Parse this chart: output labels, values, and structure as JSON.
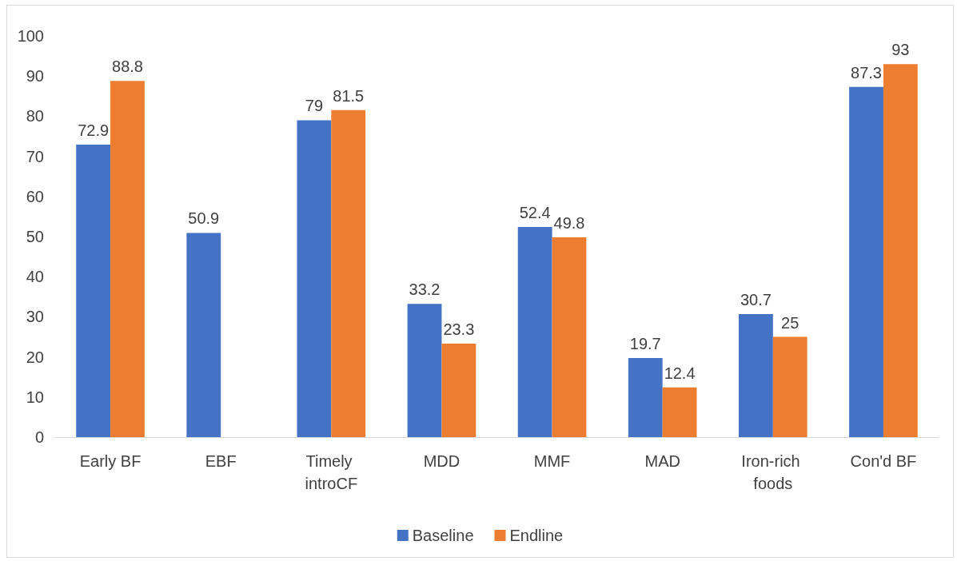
{
  "chart_data": {
    "type": "bar",
    "categories": [
      "Early BF",
      "EBF",
      "Timely introCF",
      "MDD",
      "MMF",
      "MAD",
      "Iron-rich foods",
      "Con'd BF"
    ],
    "series": [
      {
        "name": "Baseline",
        "color": "#4472c4",
        "values": [
          72.9,
          50.9,
          79,
          33.2,
          52.4,
          19.7,
          30.7,
          87.3
        ]
      },
      {
        "name": "Endline",
        "color": "#ed7d31",
        "values": [
          88.8,
          null,
          81.5,
          23.3,
          49.8,
          12.4,
          25,
          93
        ]
      }
    ],
    "ylim": [
      0,
      100
    ],
    "yticks": [
      0,
      10,
      20,
      30,
      40,
      50,
      60,
      70,
      80,
      90,
      100
    ],
    "grid": false,
    "legend": "bottom",
    "data_labels": true
  }
}
